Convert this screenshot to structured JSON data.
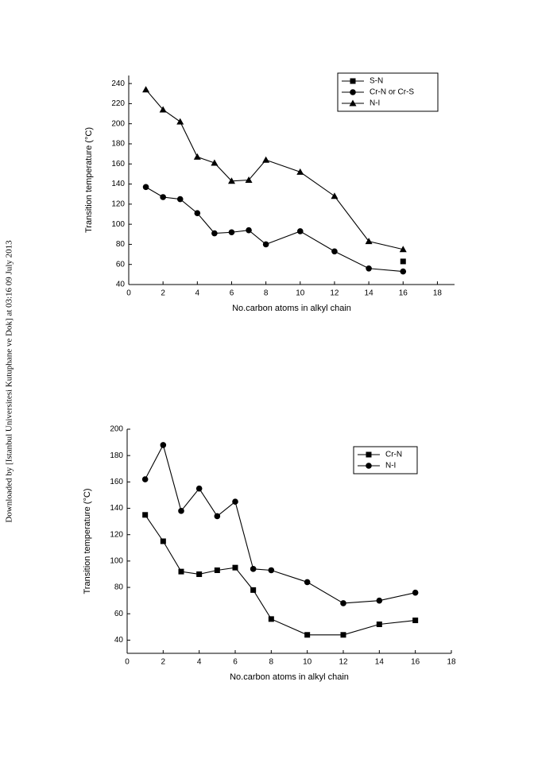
{
  "side_note": "Downloaded by [Istanbul Universitesi Kutuphane ve Dok] at 03:16 09 July 2013",
  "chart_data": [
    {
      "type": "line",
      "xlabel": "No.carbon atoms in alkyl chain",
      "ylabel": "Transition temperature (°C)",
      "x": [
        1,
        2,
        3,
        4,
        5,
        6,
        7,
        8,
        10,
        12,
        14,
        16
      ],
      "xlim": [
        0,
        19
      ],
      "xticks": [
        0,
        2,
        4,
        6,
        8,
        10,
        12,
        14,
        16,
        18
      ],
      "ylim": [
        40,
        248
      ],
      "yticks": [
        40,
        60,
        80,
        100,
        120,
        140,
        160,
        180,
        200,
        220,
        240
      ],
      "legend": "upper right",
      "series": [
        {
          "name": "S-N",
          "color": "#000000",
          "marker": "square",
          "values": [
            null,
            null,
            null,
            null,
            null,
            null,
            null,
            null,
            null,
            null,
            null,
            63
          ]
        },
        {
          "name": "Cr-N or Cr-S",
          "color": "#000000",
          "marker": "circle",
          "values": [
            137,
            127,
            125,
            111,
            91,
            92,
            94,
            80,
            93,
            73,
            56,
            53
          ]
        },
        {
          "name": "N-I",
          "color": "#000000",
          "marker": "triangle",
          "values": [
            234,
            214,
            202,
            167,
            161,
            143,
            144,
            164,
            152,
            128,
            83,
            75
          ]
        }
      ]
    },
    {
      "type": "line",
      "xlabel": "No.carbon atoms in alkyl chain",
      "ylabel": "Transition temperature (°C)",
      "x": [
        1,
        2,
        3,
        4,
        5,
        6,
        7,
        8,
        10,
        12,
        14,
        16
      ],
      "xlim": [
        0,
        18
      ],
      "xticks": [
        0,
        2,
        4,
        6,
        8,
        10,
        12,
        14,
        16,
        18
      ],
      "ylim": [
        30,
        200
      ],
      "yticks": [
        40,
        60,
        80,
        100,
        120,
        140,
        160,
        180,
        200
      ],
      "legend": "upper right",
      "series": [
        {
          "name": "Cr-N",
          "color": "#000000",
          "marker": "square",
          "values": [
            135,
            115,
            92,
            90,
            93,
            95,
            78,
            56,
            44,
            44,
            52,
            55
          ]
        },
        {
          "name": "N-I",
          "color": "#000000",
          "marker": "circle",
          "values": [
            162,
            188,
            138,
            155,
            134,
            145,
            94,
            93,
            84,
            68,
            70,
            76
          ]
        }
      ]
    }
  ]
}
